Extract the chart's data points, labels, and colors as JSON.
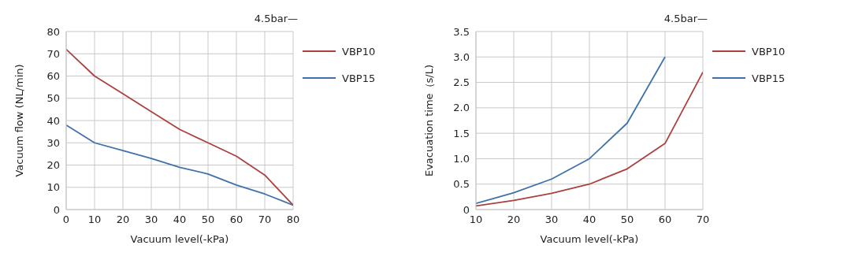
{
  "chart_data": [
    {
      "type": "line",
      "legend_title": "4.5bar—",
      "xlabel": "Vacuum level(-kPa)",
      "ylabel": "Vacuum flow (NL/min)",
      "x": [
        0,
        10,
        20,
        30,
        40,
        50,
        60,
        70,
        80
      ],
      "xlim": [
        0,
        80
      ],
      "xticks": [
        0,
        10,
        20,
        30,
        40,
        50,
        60,
        70,
        80
      ],
      "ylim": [
        0,
        80
      ],
      "yticks": [
        0,
        10,
        20,
        30,
        40,
        50,
        60,
        70,
        80
      ],
      "grid": true,
      "legend": "right",
      "marker": "none",
      "series": [
        {
          "name": "VBP10",
          "color": "#a9423f",
          "values": [
            72,
            60,
            52,
            44,
            36,
            30,
            24,
            15.5,
            2
          ]
        },
        {
          "name": "VBP15",
          "color": "#3f72a8",
          "values": [
            38,
            30,
            26.5,
            23,
            19,
            16,
            11,
            7,
            2
          ]
        }
      ]
    },
    {
      "type": "line",
      "legend_title": "4.5bar—",
      "xlabel": "Vacuum level(-kPa)",
      "ylabel": "Evacuation time（s/L)",
      "x": [
        10,
        20,
        30,
        40,
        50,
        60,
        70
      ],
      "xlim": [
        10,
        70
      ],
      "xticks": [
        10,
        20,
        30,
        40,
        50,
        60,
        70
      ],
      "ylim": [
        0,
        3.5
      ],
      "yticks": [
        0,
        {
          "value": 0.5,
          "label": "0.5"
        },
        {
          "value": 1,
          "label": "1.0"
        },
        {
          "value": 1.5,
          "label": "1.5"
        },
        {
          "value": 2,
          "label": "2.0"
        },
        {
          "value": 2.5,
          "label": "2.5"
        },
        {
          "value": 3,
          "label": "3.0"
        },
        {
          "value": 3.5,
          "label": "3.5"
        }
      ],
      "grid": true,
      "legend": "right",
      "marker": "none",
      "series": [
        {
          "name": "VBP10",
          "color": "#a9423f",
          "values": [
            0.07,
            0.18,
            0.32,
            0.5,
            0.8,
            1.3,
            2.7
          ]
        },
        {
          "name": "VBP15",
          "color": "#3f72a8",
          "x": [
            10,
            20,
            30,
            40,
            50,
            60
          ],
          "values": [
            0.12,
            0.33,
            0.6,
            1.0,
            1.7,
            3.0
          ]
        }
      ]
    }
  ]
}
